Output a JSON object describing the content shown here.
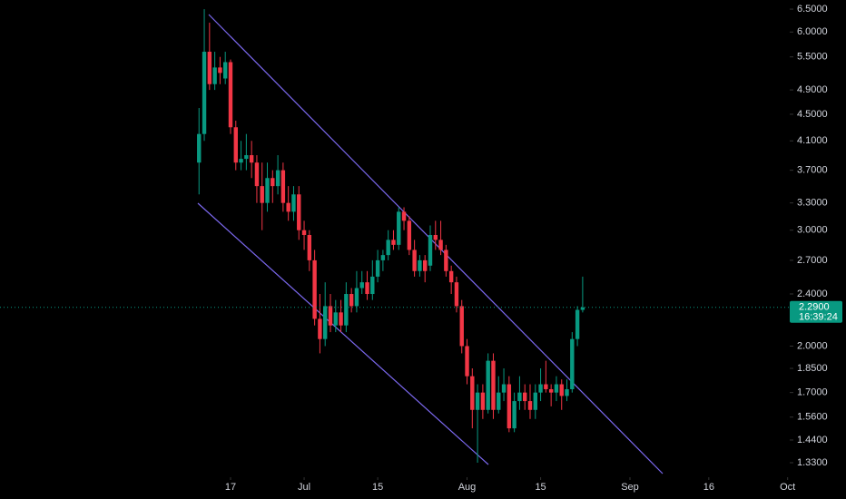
{
  "chart_data": {
    "type": "candlestick",
    "log_scale": true,
    "up_color": "#089981",
    "down_color": "#f23645",
    "x": [
      -6,
      -5,
      -4,
      -3,
      -2,
      -1,
      0,
      1,
      2,
      3,
      4,
      5,
      6,
      7,
      8,
      9,
      10,
      11,
      12,
      13,
      14,
      15,
      16,
      17,
      18,
      19,
      20,
      21,
      22,
      23,
      24,
      25,
      26,
      27,
      28,
      29,
      30,
      31,
      32,
      33,
      34,
      35,
      36,
      37,
      38,
      39,
      40,
      41,
      42,
      43,
      44,
      45,
      46,
      47,
      48,
      49,
      50,
      51,
      52,
      53,
      54,
      55,
      56,
      57,
      58,
      59,
      60,
      61,
      62,
      63,
      64,
      65,
      66,
      67
    ],
    "open": [
      3.8,
      4.2,
      5.6,
      5.0,
      5.3,
      5.1,
      5.4,
      4.3,
      3.8,
      3.85,
      3.9,
      3.8,
      3.5,
      3.3,
      3.6,
      3.5,
      3.7,
      3.3,
      3.2,
      3.4,
      3.0,
      2.95,
      2.7,
      2.2,
      2.05,
      2.3,
      2.15,
      2.25,
      2.15,
      2.4,
      2.3,
      2.45,
      2.5,
      2.4,
      2.55,
      2.7,
      2.75,
      2.9,
      2.85,
      3.2,
      3.1,
      2.8,
      2.6,
      2.7,
      2.65,
      2.95,
      2.9,
      2.8,
      2.6,
      2.5,
      2.3,
      2.0,
      1.8,
      1.6,
      1.7,
      1.6,
      1.9,
      1.6,
      1.7,
      1.75,
      1.5,
      1.65,
      1.7,
      1.65,
      1.6,
      1.7,
      1.75,
      1.72,
      1.7,
      1.75,
      1.68,
      1.72,
      2.05,
      2.27
    ],
    "high": [
      4.6,
      6.5,
      6.2,
      5.6,
      5.5,
      5.6,
      5.45,
      4.4,
      4.1,
      4.2,
      4.1,
      3.9,
      3.8,
      3.8,
      3.7,
      3.9,
      3.8,
      3.5,
      3.5,
      3.5,
      3.1,
      3.0,
      2.8,
      2.4,
      2.5,
      2.4,
      2.35,
      2.35,
      2.5,
      2.45,
      2.6,
      2.6,
      2.6,
      2.7,
      2.8,
      2.8,
      3.0,
      3.0,
      3.25,
      3.25,
      3.15,
      2.9,
      2.75,
      2.75,
      3.05,
      3.1,
      3.1,
      2.85,
      2.65,
      2.55,
      2.35,
      2.05,
      1.85,
      1.75,
      1.75,
      1.95,
      1.95,
      1.8,
      1.85,
      1.8,
      1.7,
      1.8,
      1.75,
      1.75,
      1.75,
      1.85,
      1.9,
      1.75,
      1.8,
      1.78,
      1.78,
      2.1,
      2.3,
      2.55
    ],
    "low": [
      3.4,
      4.1,
      4.9,
      4.9,
      5.0,
      5.0,
      4.2,
      3.7,
      3.7,
      3.7,
      3.6,
      3.3,
      3.0,
      3.2,
      3.3,
      3.4,
      3.2,
      3.1,
      3.1,
      2.9,
      2.8,
      2.6,
      2.15,
      1.95,
      2.0,
      2.1,
      2.1,
      2.1,
      2.1,
      2.25,
      2.25,
      2.4,
      2.35,
      2.35,
      2.5,
      2.6,
      2.7,
      2.8,
      2.8,
      3.0,
      2.75,
      2.55,
      2.55,
      2.5,
      2.6,
      2.8,
      2.75,
      2.55,
      2.4,
      2.25,
      1.95,
      1.75,
      1.5,
      1.33,
      1.55,
      1.58,
      1.55,
      1.58,
      1.65,
      1.48,
      1.48,
      1.6,
      1.6,
      1.55,
      1.55,
      1.65,
      1.7,
      1.62,
      1.65,
      1.6,
      1.65,
      1.7,
      2.0,
      2.25
    ],
    "close": [
      4.2,
      5.6,
      5.0,
      5.3,
      5.2,
      5.4,
      4.3,
      3.8,
      3.85,
      3.9,
      3.8,
      3.5,
      3.3,
      3.6,
      3.5,
      3.7,
      3.3,
      3.2,
      3.4,
      3.0,
      2.95,
      2.7,
      2.2,
      2.05,
      2.3,
      2.15,
      2.25,
      2.15,
      2.4,
      2.3,
      2.45,
      2.5,
      2.4,
      2.55,
      2.7,
      2.75,
      2.9,
      2.85,
      3.2,
      3.1,
      2.8,
      2.6,
      2.7,
      2.6,
      2.95,
      2.9,
      2.8,
      2.6,
      2.5,
      2.3,
      2.0,
      1.8,
      1.6,
      1.7,
      1.6,
      1.9,
      1.6,
      1.7,
      1.75,
      1.5,
      1.65,
      1.7,
      1.65,
      1.6,
      1.7,
      1.75,
      1.72,
      1.7,
      1.75,
      1.68,
      1.72,
      2.05,
      2.27,
      2.29
    ],
    "xlim": [
      -43.87,
      106.4
    ],
    "xticks": [
      {
        "value": 0,
        "label": "17"
      },
      {
        "value": 14,
        "label": "Jul"
      },
      {
        "value": 28,
        "label": "15"
      },
      {
        "value": 45,
        "label": "Aug"
      },
      {
        "value": 59,
        "label": "15"
      },
      {
        "value": 76,
        "label": "Sep"
      },
      {
        "value": 91,
        "label": "16"
      },
      {
        "value": 106,
        "label": "Oct"
      }
    ],
    "ylim": [
      1.1715,
      6.711
    ],
    "yticks": [
      {
        "value": 6.5,
        "label": "6.5000"
      },
      {
        "value": 6.0,
        "label": "6.0000"
      },
      {
        "value": 5.5,
        "label": "5.5000"
      },
      {
        "value": 4.9,
        "label": "4.9000"
      },
      {
        "value": 4.5,
        "label": "4.5000"
      },
      {
        "value": 4.1,
        "label": "4.1000"
      },
      {
        "value": 3.7,
        "label": "3.7000"
      },
      {
        "value": 3.3,
        "label": "3.3000"
      },
      {
        "value": 3.0,
        "label": "3.0000"
      },
      {
        "value": 2.7,
        "label": "2.7000"
      },
      {
        "value": 2.4,
        "label": "2.4000"
      },
      {
        "value": 2.0,
        "label": "2.0000"
      },
      {
        "value": 1.85,
        "label": "1.8500"
      },
      {
        "value": 1.7,
        "label": "1.7000"
      },
      {
        "value": 1.56,
        "label": "1.5600"
      },
      {
        "value": 1.44,
        "label": "1.4400"
      },
      {
        "value": 1.33,
        "label": "1.3300"
      }
    ],
    "last_price": {
      "value": 2.29,
      "label": "2.2900"
    },
    "countdown": "16:39:24"
  }
}
